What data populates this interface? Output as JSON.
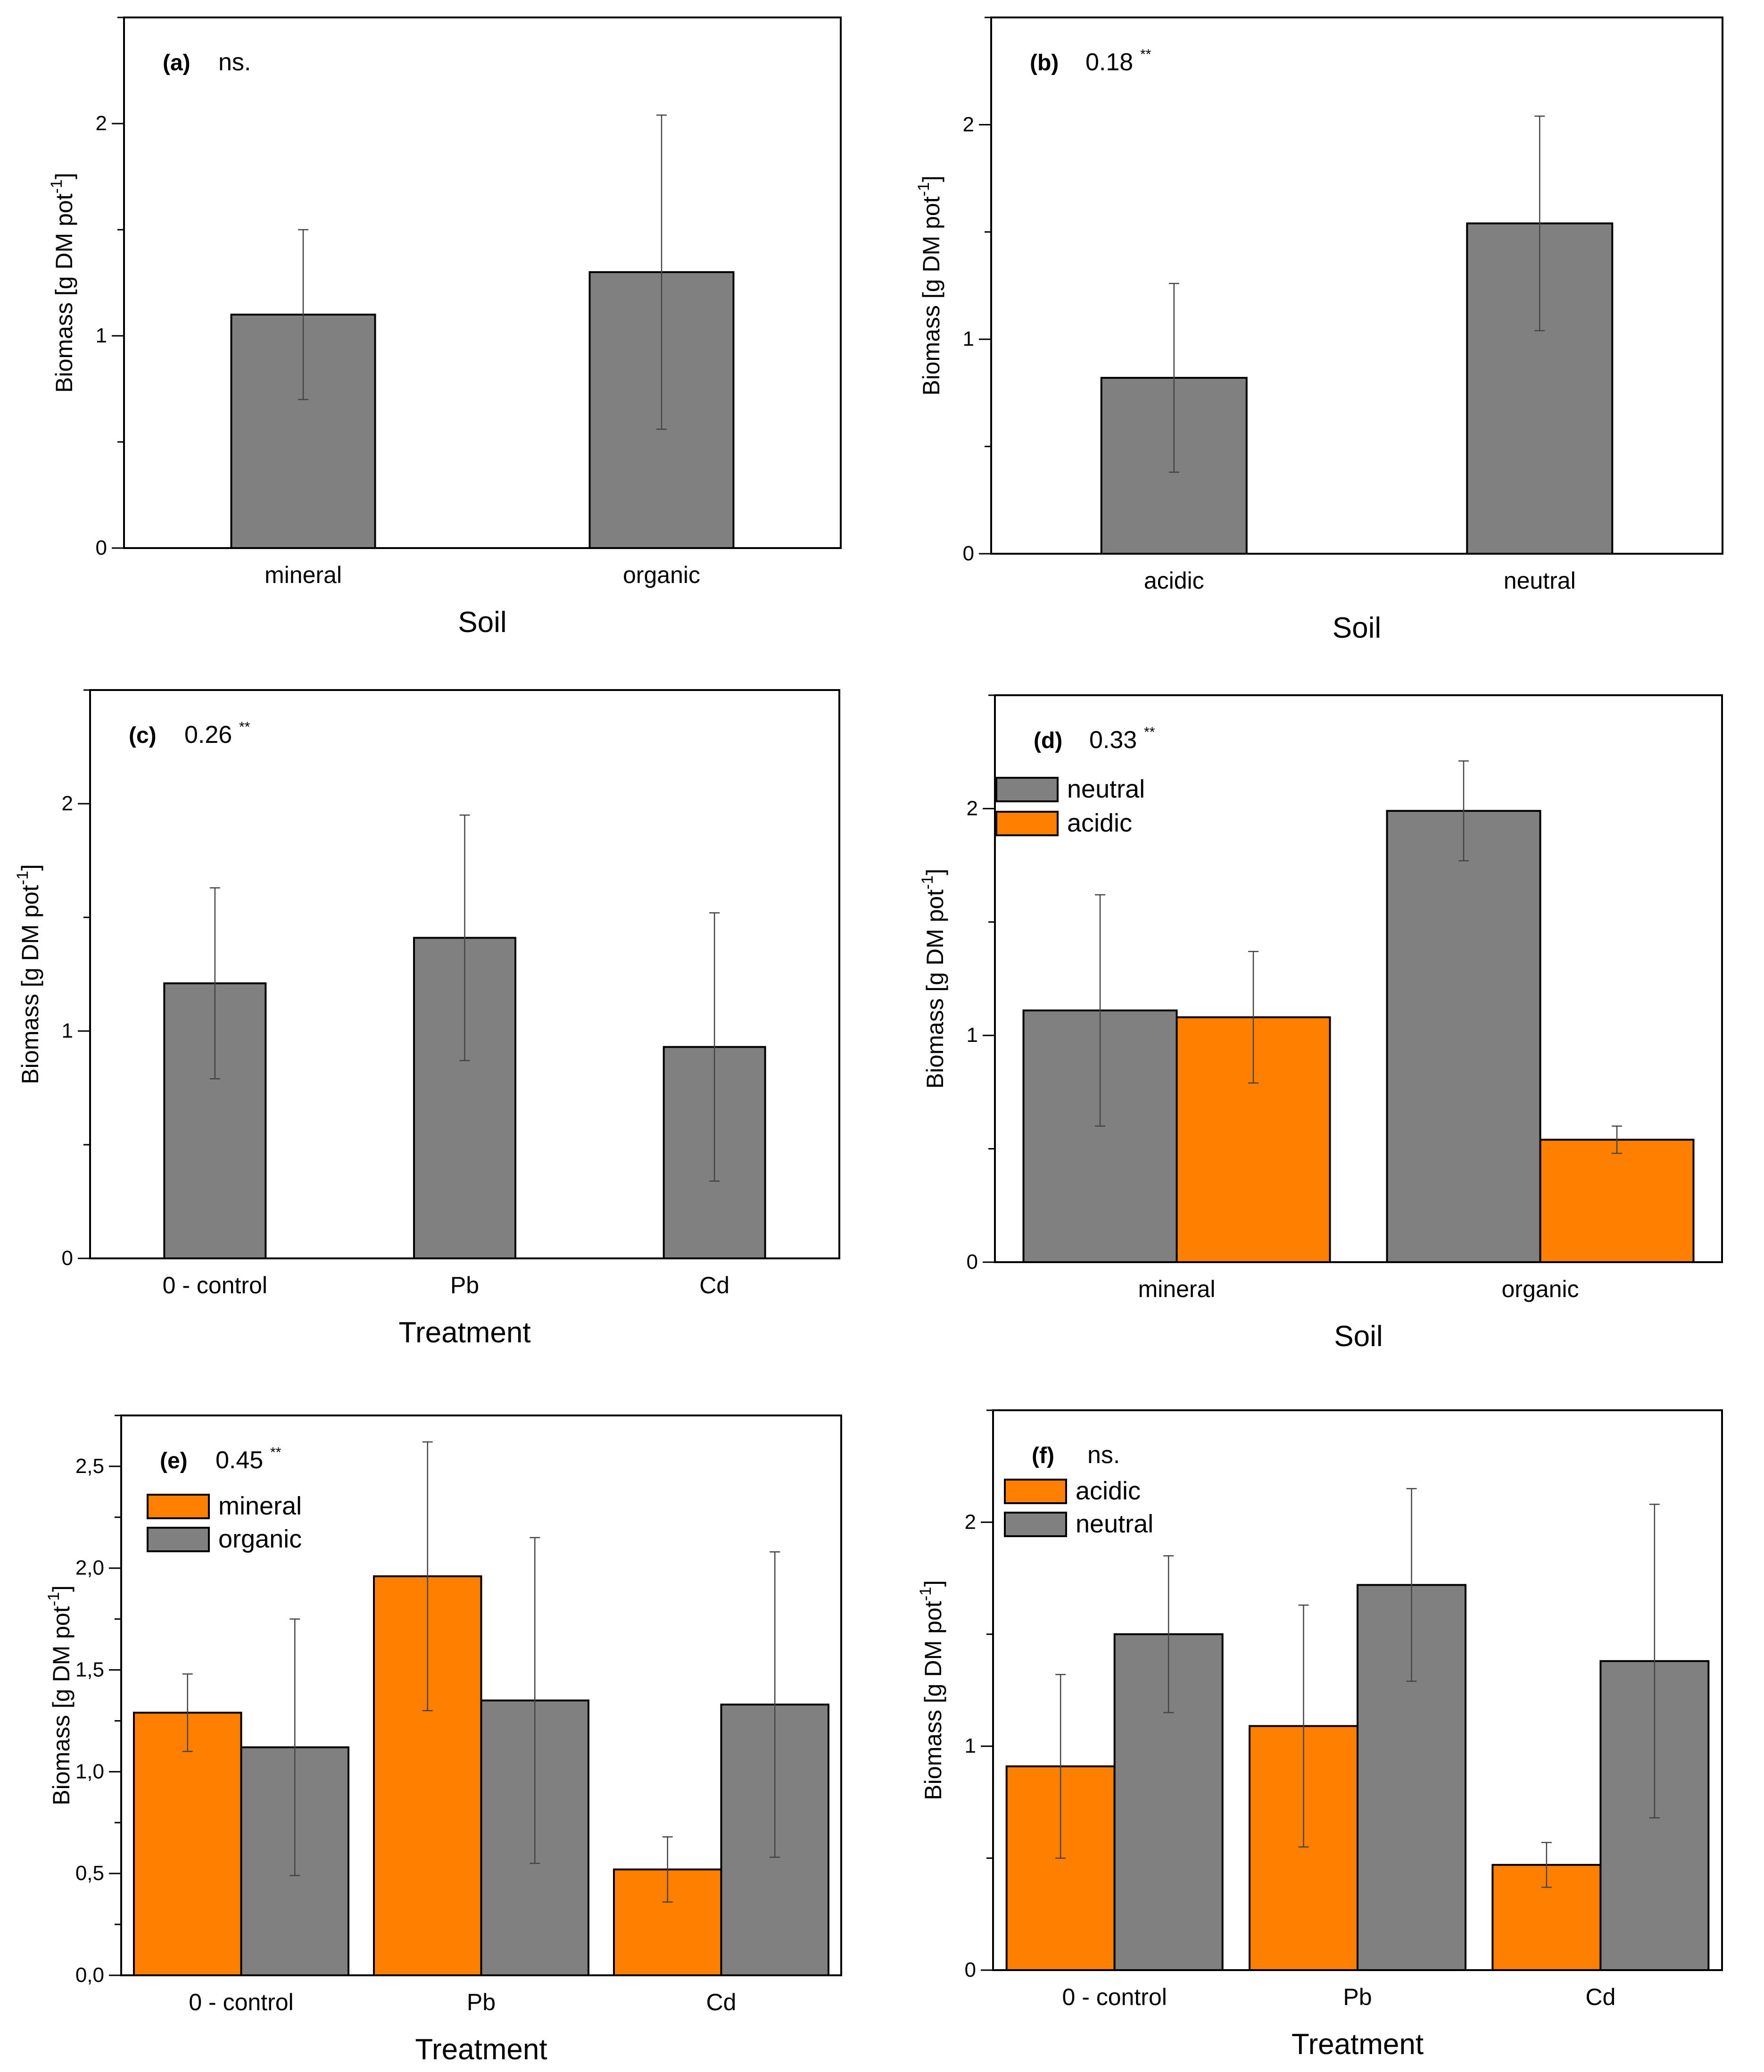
{
  "chart_data": [
    {
      "id": "a",
      "type": "bar",
      "panel_label": "(a)",
      "stat_value": "ns.",
      "stat_marker": "",
      "xlabel": "Soil",
      "ylabel": "Biomass [g DM pot",
      "ylabel_sup": "-1",
      "ylabel_end": "]",
      "ylim": [
        0,
        2.5
      ],
      "yticks": [
        0,
        1,
        2
      ],
      "ytick_labels": [
        "0",
        "1",
        "2"
      ],
      "minor_step": 0.5,
      "categories": [
        "mineral",
        "organic"
      ],
      "series": [
        {
          "name": "",
          "color": "#808080",
          "values": [
            1.1,
            1.3
          ],
          "errors": [
            0.4,
            0.74
          ]
        }
      ],
      "legend": []
    },
    {
      "id": "b",
      "type": "bar",
      "panel_label": "(b)",
      "stat_value": "0.18",
      "stat_marker": "**",
      "xlabel": "Soil",
      "ylabel": "Biomass [g DM pot",
      "ylabel_sup": "-1",
      "ylabel_end": "]",
      "ylim": [
        0,
        2.5
      ],
      "yticks": [
        0,
        1,
        2
      ],
      "ytick_labels": [
        "0",
        "1",
        "2"
      ],
      "minor_step": 0.5,
      "categories": [
        "acidic",
        "neutral"
      ],
      "series": [
        {
          "name": "",
          "color": "#808080",
          "values": [
            0.82,
            1.54
          ],
          "errors": [
            0.44,
            0.5
          ]
        }
      ],
      "legend": []
    },
    {
      "id": "c",
      "type": "bar",
      "panel_label": "(c)",
      "stat_value": "0.26",
      "stat_marker": "**",
      "xlabel": "Treatment",
      "ylabel": "Biomass [g DM pot",
      "ylabel_sup": "-1",
      "ylabel_end": "]",
      "ylim": [
        0,
        2.5
      ],
      "yticks": [
        0,
        1,
        2
      ],
      "ytick_labels": [
        "0",
        "1",
        "2"
      ],
      "minor_step": 0.5,
      "categories": [
        "0 - control",
        "Pb",
        "Cd"
      ],
      "series": [
        {
          "name": "",
          "color": "#808080",
          "values": [
            1.21,
            1.41,
            0.93
          ],
          "errors": [
            0.42,
            0.54,
            0.59
          ]
        }
      ],
      "legend": []
    },
    {
      "id": "d",
      "type": "bar",
      "panel_label": "(d)",
      "stat_value": "0.33",
      "stat_marker": "**",
      "xlabel": "Soil",
      "ylabel": "Biomass [g DM pot",
      "ylabel_sup": "-1",
      "ylabel_end": "]",
      "ylim": [
        0,
        2.5
      ],
      "yticks": [
        0,
        1,
        2
      ],
      "ytick_labels": [
        "0",
        "1",
        "2"
      ],
      "minor_step": 0.5,
      "categories": [
        "mineral",
        "organic"
      ],
      "series": [
        {
          "name": "neutral",
          "color": "#808080",
          "values": [
            1.11,
            1.99
          ],
          "errors": [
            0.51,
            0.22
          ]
        },
        {
          "name": "acidic",
          "color": "#ff8000",
          "values": [
            1.08,
            0.54
          ],
          "errors": [
            0.29,
            0.06
          ]
        }
      ],
      "legend": [
        "neutral",
        "acidic"
      ]
    },
    {
      "id": "e",
      "type": "bar",
      "panel_label": "(e)",
      "stat_value": "0.45",
      "stat_marker": "**",
      "xlabel": "Treatment",
      "ylabel": "Biomass [g DM pot",
      "ylabel_sup": "-1",
      "ylabel_end": "]",
      "ylim": [
        0,
        2.75
      ],
      "yticks": [
        0,
        0.5,
        1.0,
        1.5,
        2.0,
        2.5
      ],
      "ytick_labels": [
        "0,0",
        "0,5",
        "1,0",
        "1,5",
        "2,0",
        "2,5"
      ],
      "minor_step": 0.25,
      "categories": [
        "0 - control",
        "Pb",
        "Cd"
      ],
      "series": [
        {
          "name": "mineral",
          "color": "#ff8000",
          "values": [
            1.29,
            1.96,
            0.52
          ],
          "errors": [
            0.19,
            0.66,
            0.16
          ]
        },
        {
          "name": "organic",
          "color": "#808080",
          "values": [
            1.12,
            1.35,
            1.33
          ],
          "errors": [
            0.63,
            0.8,
            0.75
          ]
        }
      ],
      "legend": [
        "mineral",
        "organic"
      ]
    },
    {
      "id": "f",
      "type": "bar",
      "panel_label": "(f)",
      "stat_value": "ns.",
      "stat_marker": "",
      "xlabel": "Treatment",
      "ylabel": "Biomass [g DM pot",
      "ylabel_sup": "-1",
      "ylabel_end": "]",
      "ylim": [
        0,
        2.5
      ],
      "yticks": [
        0,
        1,
        2
      ],
      "ytick_labels": [
        "0",
        "1",
        "2"
      ],
      "minor_step": 0.5,
      "categories": [
        "0 - control",
        "Pb",
        "Cd"
      ],
      "series": [
        {
          "name": "acidic",
          "color": "#ff8000",
          "values": [
            0.91,
            1.09,
            0.47
          ],
          "errors": [
            0.41,
            0.54,
            0.1
          ]
        },
        {
          "name": "neutral",
          "color": "#808080",
          "values": [
            1.5,
            1.72,
            1.38
          ],
          "errors": [
            0.35,
            0.43,
            0.7
          ]
        }
      ],
      "legend": [
        "acidic",
        "neutral"
      ]
    }
  ]
}
